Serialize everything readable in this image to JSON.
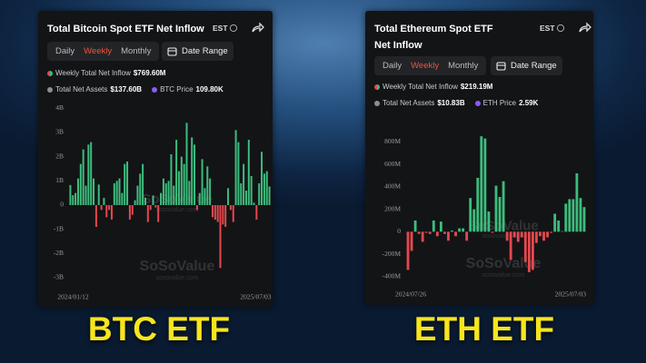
{
  "chart_data": [
    {
      "type": "bar",
      "title": "Total Bitcoin Spot ETF Net Inflow",
      "timezone": "EST",
      "tabs": [
        "Daily",
        "Weekly",
        "Monthly"
      ],
      "active_tab": "Weekly",
      "date_range": "Date Range",
      "stats": [
        {
          "label": "Weekly Total Net Inflow",
          "value": "$769.60M"
        },
        {
          "label": "Total Net Assets",
          "value": "$137.60B",
          "color": "#8a8f98"
        },
        {
          "label": "BTC Price",
          "value": "109.80K",
          "color": "#8b5cf6"
        }
      ],
      "watermark": "SoSoValue",
      "watermark_url": "sosovalue.com",
      "caption": "BTC ETF",
      "positive_color": "#3dbd7d",
      "negative_color": "#e5484d",
      "grid": false,
      "ylim": [
        -3.3,
        4.2
      ],
      "yticks": [
        {
          "value": 4,
          "label": "4B"
        },
        {
          "value": 3,
          "label": "3B"
        },
        {
          "value": 2,
          "label": "2B"
        },
        {
          "value": 1,
          "label": "1B"
        },
        0,
        {
          "value": -1,
          "label": "-1B"
        },
        {
          "value": -2,
          "label": "-2B"
        },
        {
          "value": -3,
          "label": "-3B"
        }
      ],
      "categories": [
        "2024/01/12",
        null,
        null,
        null,
        null,
        null,
        null,
        null,
        null,
        null,
        null,
        null,
        null,
        null,
        null,
        null,
        null,
        null,
        null,
        null,
        null,
        null,
        null,
        null,
        null,
        null,
        null,
        null,
        null,
        null,
        null,
        null,
        null,
        null,
        null,
        null,
        null,
        null,
        null,
        null,
        null,
        null,
        null,
        null,
        null,
        null,
        null,
        null,
        null,
        null,
        null,
        null,
        null,
        null,
        null,
        null,
        null,
        null,
        null,
        null,
        null,
        null,
        null,
        null,
        null,
        null,
        null,
        null,
        null,
        null,
        null,
        null,
        null,
        null,
        null,
        null,
        null,
        "2025/07/03"
      ],
      "values": [
        0.83,
        0.41,
        0.5,
        1.1,
        1.7,
        2.3,
        0.8,
        2.5,
        2.6,
        1.1,
        -0.9,
        0.85,
        -0.2,
        0.3,
        -0.5,
        -0.2,
        -0.6,
        0.9,
        1.0,
        1.1,
        0.5,
        1.7,
        1.8,
        -0.6,
        -0.4,
        0.2,
        0.8,
        1.3,
        1.7,
        0.3,
        -0.7,
        -0.2,
        0.4,
        -0.1,
        -0.7,
        0.5,
        1.1,
        0.9,
        1.0,
        2.1,
        0.8,
        2.7,
        1.4,
        2.0,
        1.7,
        3.4,
        1.0,
        2.8,
        2.5,
        -0.2,
        0.5,
        1.9,
        0.7,
        1.6,
        1.1,
        -0.5,
        -0.6,
        -0.7,
        -2.6,
        -0.8,
        -0.9,
        0.7,
        -0.2,
        -0.7,
        3.1,
        2.6,
        0.9,
        1.7,
        0.6,
        2.7,
        1.2,
        0.1,
        -0.6,
        0.9,
        2.2,
        1.3,
        1.4,
        0.77
      ]
    },
    {
      "type": "bar",
      "title": "Total Ethereum Spot ETF Net Inflow",
      "timezone": "EST",
      "tabs": [
        "Daily",
        "Weekly",
        "Monthly"
      ],
      "active_tab": "Weekly",
      "date_range": "Date Range",
      "stats": [
        {
          "label": "Weekly Total Net Inflow",
          "value": "$219.19M"
        },
        {
          "label": "Total Net Assets",
          "value": "$10.83B",
          "color": "#8a8f98"
        },
        {
          "label": "ETH Price",
          "value": "2.59K",
          "color": "#8b5cf6"
        }
      ],
      "watermark": "SoSoValue",
      "watermark_url": "sosovalue.com",
      "caption": "ETH ETF",
      "positive_color": "#3dbd7d",
      "negative_color": "#e5484d",
      "grid": false,
      "ylim": [
        -450,
        900
      ],
      "yticks": [
        {
          "value": 800,
          "label": "800M"
        },
        {
          "value": 600,
          "label": "600M"
        },
        {
          "value": 400,
          "label": "400M"
        },
        {
          "value": 200,
          "label": "200M"
        },
        0,
        {
          "value": -200,
          "label": "-200M"
        },
        {
          "value": -400,
          "label": "-400M"
        }
      ],
      "categories": [
        "2024/07/26",
        null,
        null,
        null,
        null,
        null,
        null,
        null,
        null,
        null,
        null,
        null,
        null,
        null,
        null,
        null,
        null,
        null,
        null,
        null,
        null,
        null,
        null,
        null,
        null,
        null,
        null,
        null,
        null,
        null,
        null,
        null,
        null,
        null,
        null,
        null,
        null,
        null,
        null,
        null,
        null,
        null,
        null,
        null,
        null,
        null,
        null,
        null,
        "2025/07/03"
      ],
      "values": [
        -340,
        -170,
        100,
        -20,
        -90,
        -10,
        -20,
        100,
        -40,
        90,
        -20,
        -80,
        10,
        -40,
        30,
        30,
        -80,
        300,
        200,
        480,
        850,
        830,
        180,
        -10,
        410,
        310,
        450,
        -80,
        -250,
        -50,
        -90,
        -50,
        -270,
        -360,
        -340,
        -100,
        -40,
        -80,
        -50,
        -10,
        160,
        100,
        5,
        250,
        290,
        290,
        520,
        300,
        219.19
      ]
    }
  ]
}
